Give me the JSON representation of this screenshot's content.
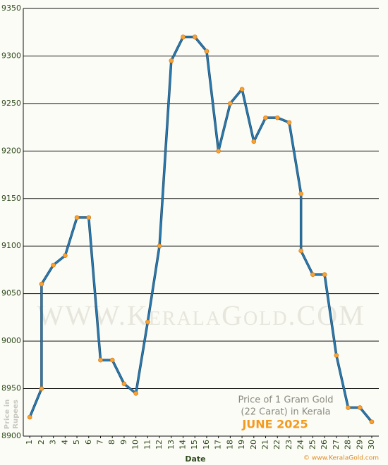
{
  "chart_data": {
    "type": "line",
    "x": [
      1,
      2,
      2,
      3,
      4,
      5,
      6,
      7,
      8,
      9,
      10,
      11,
      12,
      13,
      14,
      15,
      16,
      17,
      18,
      19,
      20,
      21,
      22,
      23,
      24,
      24,
      25,
      26,
      27,
      28,
      29,
      30
    ],
    "series": [
      {
        "color": "#2b7bb0",
        "marker_color": "#f7a234",
        "values": [
          8920,
          8950,
          9060,
          9080,
          9090,
          9130,
          9130,
          8980,
          8980,
          8955,
          8945,
          9020,
          9100,
          9295,
          9320,
          9320,
          9305,
          9200,
          9250,
          9265,
          9210,
          9235,
          9235,
          9230,
          9155,
          9095,
          9070,
          9070,
          8985,
          8930,
          8930,
          8915
        ]
      }
    ],
    "xlim": [
      0.45,
      30.6
    ],
    "xticks": [
      1,
      2,
      3,
      4,
      5,
      6,
      7,
      8,
      9,
      10,
      11,
      12,
      13,
      14,
      15,
      16,
      17,
      18,
      19,
      20,
      21,
      22,
      23,
      24,
      25,
      26,
      27,
      28,
      29,
      30
    ],
    "ylim": [
      8900,
      9350
    ],
    "yticks": [
      8900,
      8950,
      9000,
      9050,
      9100,
      9150,
      9200,
      9250,
      9300,
      9350
    ],
    "grid": true,
    "xlabel": "Date",
    "ylabel": [
      "Price in",
      "Rupees"
    ],
    "annotation": [
      "Price of 1 Gram Gold",
      "(22 Carat) in Kerala"
    ],
    "month": "JUNE 2025",
    "watermark": "WWW.KeralaGold.COM",
    "footer": "© www.KeralaGold.com"
  }
}
